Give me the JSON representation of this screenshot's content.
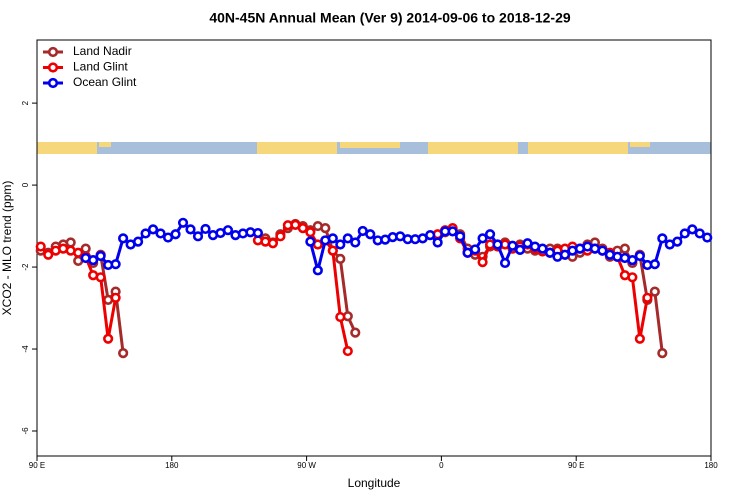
{
  "chart_data": {
    "type": "line",
    "title": "40N-45N Annual Mean (Ver 9)   2014-09-06 to 2018-12-29",
    "x_label": "Longitude",
    "y_label": "XCO2 - MLO trend (ppm)",
    "xlim": [
      90,
      540
    ],
    "ylim": [
      -6.61,
      3.54
    ],
    "xticks": [
      {
        "value": 90,
        "label": "90 E"
      },
      180,
      {
        "value": 270,
        "label": "90 W"
      },
      {
        "value": 360,
        "label": "0"
      },
      {
        "value": 450,
        "label": "90 E"
      },
      {
        "value": 540,
        "label": "180"
      }
    ],
    "yticks": [
      -6,
      -4,
      -2,
      0,
      2
    ],
    "legend": "top-left",
    "series": [
      {
        "name": "Land Nadir",
        "color": "#a52a2a",
        "x": [
          92.5,
          97.5,
          102.5,
          107.5,
          112.5,
          117.5,
          122.5,
          127.5,
          132.5,
          137.5,
          142.5,
          147.5,
          195,
          242.5,
          247.5,
          252.5,
          257.5,
          262.5,
          267.5,
          272.5,
          277.5,
          282.5,
          287.5,
          292.5,
          297.5,
          302.5,
          330,
          362.5,
          367.5,
          372.5,
          377.5,
          382.5,
          387.5,
          392.5,
          397.5,
          402.5,
          407.5,
          412.5,
          417.5,
          422.5,
          427.5,
          432.5,
          437.5,
          442.5,
          447.5,
          452.5,
          457.5,
          462.5,
          467.5,
          472.5,
          477.5,
          482.5,
          487.5,
          492.5,
          497.5,
          502.5,
          507.5
        ],
        "values": [
          -1.6,
          -1.65,
          -1.5,
          -1.45,
          -1.4,
          -1.85,
          -1.55,
          -1.9,
          -1.7,
          -2.8,
          -2.6,
          -4.1,
          null,
          -1.3,
          -1.4,
          -1.2,
          -1.05,
          -0.95,
          -1.0,
          -1.1,
          -1.0,
          -1.05,
          -1.6,
          -1.8,
          -3.2,
          -3.6,
          null,
          -1.15,
          -1.1,
          -1.2,
          -1.55,
          -1.7,
          -1.75,
          -1.5,
          -1.45,
          -1.4,
          -1.5,
          -1.45,
          -1.55,
          -1.6,
          -1.6,
          -1.55,
          -1.55,
          -1.7,
          -1.75,
          -1.65,
          -1.45,
          -1.4,
          -1.55,
          -1.75,
          -1.6,
          -1.55,
          -1.9,
          -1.7,
          -2.8,
          -2.6,
          -4.1
        ]
      },
      {
        "name": "Land Glint",
        "color": "#ee0000",
        "x": [
          92.5,
          97.5,
          102.5,
          107.5,
          112.5,
          117.5,
          122.5,
          127.5,
          132.5,
          137.5,
          142.5,
          190,
          237.5,
          242.5,
          247.5,
          252.5,
          257.5,
          262.5,
          267.5,
          272.5,
          277.5,
          282.5,
          287.5,
          292.5,
          297.5,
          327.5,
          357.5,
          362.5,
          367.5,
          372.5,
          377.5,
          382.5,
          387.5,
          392.5,
          397.5,
          402.5,
          407.5,
          412.5,
          417.5,
          422.5,
          427.5,
          432.5,
          437.5,
          442.5,
          447.5,
          452.5,
          457.5,
          462.5,
          467.5,
          472.5,
          477.5,
          482.5,
          487.5,
          492.5,
          497.5
        ],
        "values": [
          -1.5,
          -1.7,
          -1.6,
          -1.55,
          -1.6,
          -1.65,
          -1.75,
          -2.2,
          -2.25,
          -3.75,
          -2.75,
          null,
          -1.35,
          -1.38,
          -1.42,
          -1.25,
          -0.98,
          -0.97,
          -1.05,
          -1.15,
          -1.45,
          -1.35,
          -1.6,
          -3.22,
          -4.05,
          null,
          -1.2,
          -1.1,
          -1.05,
          -1.3,
          -1.65,
          -1.6,
          -1.88,
          -1.45,
          -1.5,
          -1.45,
          -1.55,
          -1.5,
          -1.45,
          -1.55,
          -1.62,
          -1.65,
          -1.6,
          -1.55,
          -1.5,
          -1.55,
          -1.6,
          -1.55,
          -1.6,
          -1.65,
          -1.75,
          -2.2,
          -2.25,
          -3.75,
          -2.75
        ]
      },
      {
        "name": "Ocean Glint",
        "color": "#0000ee",
        "x": [
          122.5,
          127.5,
          132.5,
          137.5,
          142.5,
          147.5,
          152.5,
          157.5,
          162.5,
          167.5,
          172.5,
          177.5,
          182.5,
          187.5,
          192.5,
          197.5,
          202.5,
          207.5,
          212.5,
          217.5,
          222.5,
          227.5,
          232.5,
          237.5,
          255,
          272.5,
          277.5,
          282.5,
          287.5,
          292.5,
          297.5,
          302.5,
          307.5,
          312.5,
          317.5,
          322.5,
          327.5,
          332.5,
          337.5,
          342.5,
          347.5,
          352.5,
          357.5,
          362.5,
          367.5,
          372.5,
          377.5,
          382.5,
          387.5,
          392.5,
          397.5,
          402.5,
          407.5,
          412.5,
          417.5,
          422.5,
          427.5,
          432.5,
          437.5,
          442.5,
          447.5,
          452.5,
          457.5,
          462.5,
          467.5,
          472.5,
          477.5,
          482.5,
          487.5,
          492.5,
          497.5,
          502.5,
          507.5,
          512.5,
          517.5,
          522.5,
          527.5,
          532.5,
          537.5
        ],
        "values": [
          -1.78,
          -1.83,
          -1.73,
          -1.95,
          -1.93,
          -1.3,
          -1.45,
          -1.38,
          -1.18,
          -1.08,
          -1.18,
          -1.28,
          -1.2,
          -0.92,
          -1.08,
          -1.25,
          -1.07,
          -1.22,
          -1.17,
          -1.1,
          -1.22,
          -1.18,
          -1.15,
          -1.17,
          null,
          -1.38,
          -2.08,
          -1.35,
          -1.3,
          -1.45,
          -1.3,
          -1.4,
          -1.12,
          -1.2,
          -1.35,
          -1.33,
          -1.27,
          -1.25,
          -1.32,
          -1.32,
          -1.3,
          -1.22,
          -1.4,
          -1.13,
          -1.13,
          -1.25,
          -1.65,
          -1.57,
          -1.3,
          -1.2,
          -1.45,
          -1.9,
          -1.48,
          -1.58,
          -1.42,
          -1.5,
          -1.55,
          -1.65,
          -1.75,
          -1.7,
          -1.6,
          -1.55,
          -1.5,
          -1.55,
          -1.6,
          -1.7,
          -1.75,
          -1.78,
          -1.83,
          -1.73,
          -1.95,
          -1.93,
          -1.3,
          -1.45,
          -1.38,
          -1.18,
          -1.08,
          -1.18,
          -1.28
        ]
      }
    ]
  }
}
